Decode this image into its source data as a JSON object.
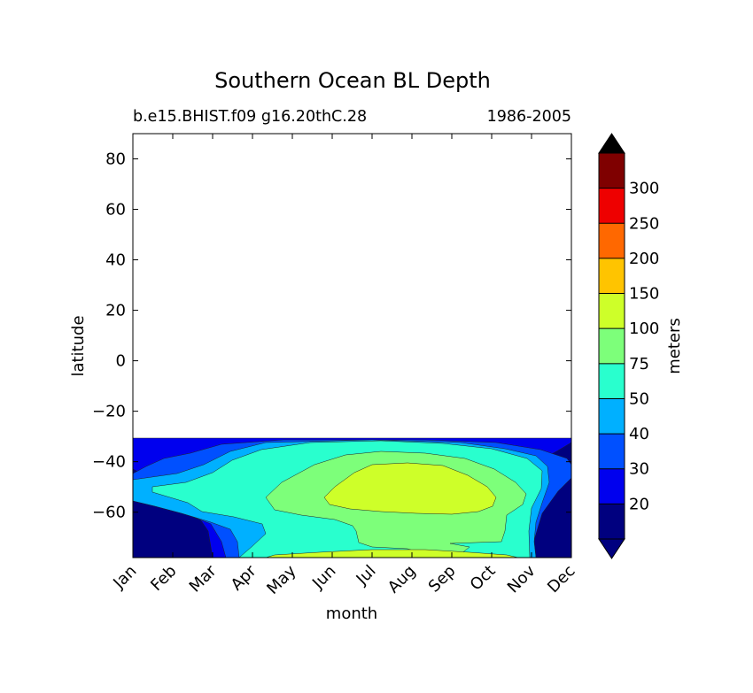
{
  "chart_data": {
    "type": "contour",
    "title": "Southern Ocean BL Depth",
    "subtitle_left": "b.e15.BHIST.f09 g16.20thC.28",
    "subtitle_right": "1986-2005",
    "xlabel": "month",
    "ylabel": "latitude",
    "x_ticks": [
      "Jan",
      "Feb",
      "Mar",
      "Apr",
      "May",
      "Jun",
      "Jul",
      "Aug",
      "Sep",
      "Oct",
      "Nov",
      "Dec"
    ],
    "ylim": [
      -78,
      90
    ],
    "y_ticks": [
      80,
      60,
      40,
      20,
      0,
      -20,
      -40,
      -60
    ],
    "data_region_lat": [
      -78,
      -32
    ],
    "colorbar": {
      "label": "meters",
      "levels": [
        20,
        30,
        40,
        50,
        75,
        100,
        150,
        200,
        250,
        300
      ],
      "colors": [
        "#00007f",
        "#0000ee",
        "#0050ff",
        "#00b0ff",
        "#29ffce",
        "#7dff7a",
        "#ceff29",
        "#ffc400",
        "#ff6800",
        "#ee0000",
        "#7f0000"
      ],
      "extend": "both"
    },
    "contours": [
      {
        "min": 20,
        "approx_extent": {
          "months": [
            "Jan",
            "Dec"
          ],
          "lat": [
            -78,
            -32
          ]
        }
      },
      {
        "min": 30,
        "approx_extent": {
          "months": [
            "Jan",
            "Dec"
          ],
          "lat": [
            -75,
            -33
          ]
        }
      },
      {
        "min": 40,
        "approx_extent": {
          "months": [
            "Jan",
            "Dec"
          ],
          "lat": [
            -74,
            -36
          ]
        }
      },
      {
        "min": 50,
        "approx_extent": {
          "months": [
            "Feb",
            "Nov"
          ],
          "lat": [
            -76,
            -36
          ]
        }
      },
      {
        "min": 75,
        "approx_extent": {
          "months": [
            "Apr",
            "Nov"
          ],
          "lat": [
            -76,
            -40
          ]
        }
      },
      {
        "min": 100,
        "approx_extent": {
          "months": [
            "May",
            "Oct"
          ],
          "lat": [
            -72,
            -42
          ]
        }
      },
      {
        "min": 150,
        "approx_extent": {
          "months": [
            "Jun",
            "Sep"
          ],
          "lat": [
            -62,
            -46
          ]
        }
      }
    ]
  }
}
